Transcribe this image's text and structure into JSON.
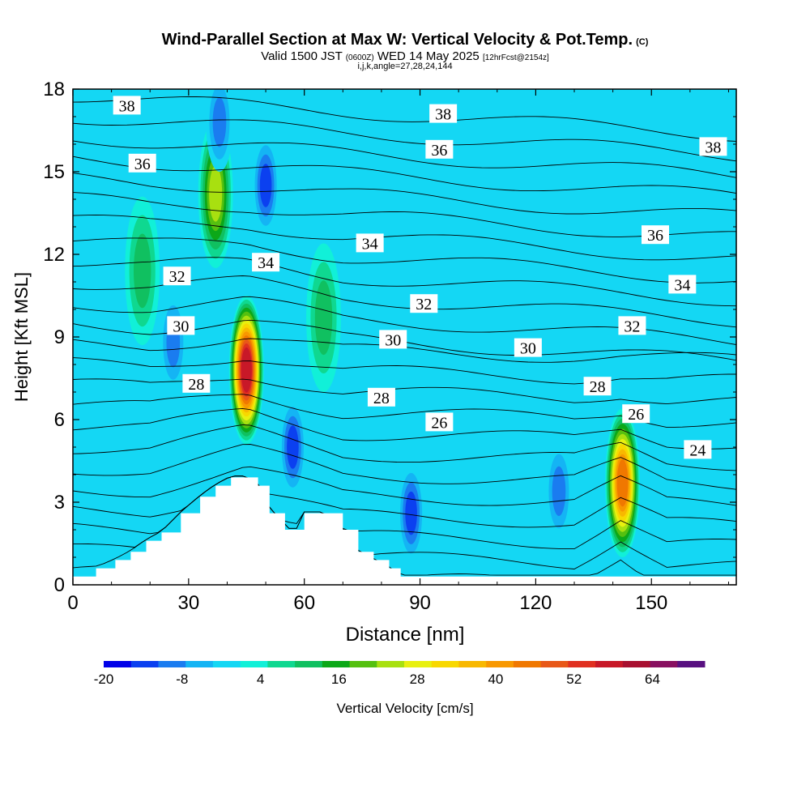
{
  "header": {
    "title": "Wind-Parallel Section at Max W: Vertical Velocity & Pot.Temp.",
    "title_tag": "(C)",
    "valid_main": "Valid 1500 JST",
    "valid_zulu": "(0600Z)",
    "valid_date": "WED 14 May 2025",
    "forecast_tag": "[12hrFcst@2154z]",
    "indices": "i,j,k,angle=27,28,24,144"
  },
  "chart_data": {
    "type": "heatmap",
    "xlabel": "Distance [nm]",
    "ylabel": "Height [Kft MSL]",
    "xlim": [
      0,
      172
    ],
    "ylim": [
      0,
      18
    ],
    "x_ticks": [
      0,
      30,
      60,
      90,
      120,
      150
    ],
    "y_ticks": [
      0,
      3,
      6,
      9,
      12,
      15,
      18
    ],
    "grid": false,
    "colorbar": {
      "label": "Vertical Velocity [cm/s]",
      "min": -20,
      "max": 72,
      "tick_values": [
        -20,
        -8,
        4,
        16,
        28,
        40,
        52,
        64
      ],
      "colors": [
        "#0000e8",
        "#0b40f0",
        "#1a7cf0",
        "#14b4f4",
        "#14d7f4",
        "#11f0d8",
        "#0fd890",
        "#10c060",
        "#0ca818",
        "#55c010",
        "#a8e010",
        "#e8f010",
        "#f8d800",
        "#f8b800",
        "#f89800",
        "#f07800",
        "#e85818",
        "#e03020",
        "#c81828",
        "#a81030",
        "#881060",
        "#581080"
      ]
    },
    "background_field_cm_s": 0,
    "updraft_cores": [
      {
        "x": 45,
        "y": 7.8,
        "peak_cm_s": 58
      },
      {
        "x": 142.5,
        "y": 3.7,
        "peak_cm_s": 45
      },
      {
        "x": 37,
        "y": 14.2,
        "peak_cm_s": 24
      },
      {
        "x": 65,
        "y": 9.7,
        "peak_cm_s": 14
      },
      {
        "x": 18,
        "y": 11.4,
        "peak_cm_s": 13
      }
    ],
    "downdraft_cores": [
      {
        "x": 50,
        "y": 14.5,
        "min_cm_s": -17
      },
      {
        "x": 87.7,
        "y": 2.6,
        "min_cm_s": -18
      },
      {
        "x": 57,
        "y": 5,
        "min_cm_s": -15
      },
      {
        "x": 126,
        "y": 3.4,
        "min_cm_s": -13
      },
      {
        "x": 26,
        "y": 8.8,
        "min_cm_s": -12
      },
      {
        "x": 38,
        "y": 16.8,
        "min_cm_s": -12
      }
    ],
    "terrain_height_kft": [
      [
        0,
        0.3
      ],
      [
        6,
        0.6
      ],
      [
        11,
        0.9
      ],
      [
        15,
        1.2
      ],
      [
        19,
        1.6
      ],
      [
        23,
        1.9
      ],
      [
        28,
        2.6
      ],
      [
        33,
        3.2
      ],
      [
        37,
        3.6
      ],
      [
        41,
        3.9
      ],
      [
        45,
        3.9
      ],
      [
        48,
        3.6
      ],
      [
        51,
        2.6
      ],
      [
        53,
        2.6
      ],
      [
        55,
        2.0
      ],
      [
        58,
        2.0
      ],
      [
        60,
        2.6
      ],
      [
        65,
        2.6
      ],
      [
        70,
        2.0
      ],
      [
        74,
        1.2
      ],
      [
        78,
        0.9
      ],
      [
        82,
        0.6
      ],
      [
        85,
        0.3
      ],
      [
        172,
        0.3
      ]
    ],
    "theta_contour_labels": [
      {
        "value": "38",
        "x": 14,
        "y": 17.4
      },
      {
        "value": "38",
        "x": 96,
        "y": 17.1
      },
      {
        "value": "38",
        "x": 166,
        "y": 15.9
      },
      {
        "value": "36",
        "x": 18,
        "y": 15.3
      },
      {
        "value": "36",
        "x": 95,
        "y": 15.8
      },
      {
        "value": "36",
        "x": 151,
        "y": 12.7
      },
      {
        "value": "34",
        "x": 50,
        "y": 11.7
      },
      {
        "value": "34",
        "x": 77,
        "y": 12.4
      },
      {
        "value": "34",
        "x": 158,
        "y": 10.9
      },
      {
        "value": "32",
        "x": 27,
        "y": 11.2
      },
      {
        "value": "32",
        "x": 91,
        "y": 10.2
      },
      {
        "value": "32",
        "x": 145,
        "y": 9.4
      },
      {
        "value": "30",
        "x": 28,
        "y": 9.4
      },
      {
        "value": "30",
        "x": 83,
        "y": 8.9
      },
      {
        "value": "30",
        "x": 118,
        "y": 8.6
      },
      {
        "value": "28",
        "x": 32,
        "y": 7.3
      },
      {
        "value": "28",
        "x": 80,
        "y": 6.8
      },
      {
        "value": "28",
        "x": 136,
        "y": 7.2
      },
      {
        "value": "26",
        "x": 95,
        "y": 5.9
      },
      {
        "value": "26",
        "x": 146,
        "y": 6.2
      },
      {
        "value": "24",
        "x": 162,
        "y": 4.9
      }
    ]
  }
}
